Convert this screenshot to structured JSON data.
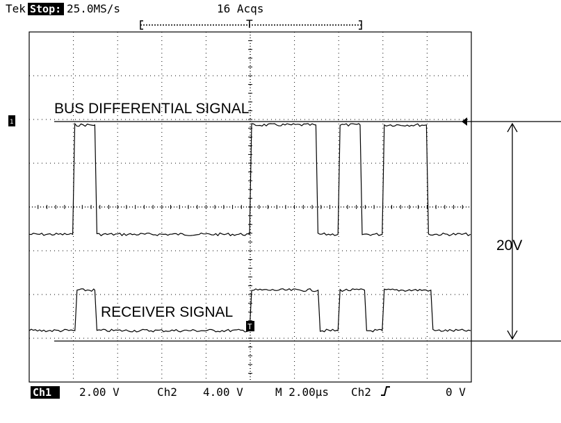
{
  "header": {
    "brand": "Tek",
    "state": "Stop:",
    "sample_rate": "25.0MS/s",
    "acquisitions": "16 Acqs"
  },
  "footer": {
    "ch1": "Ch1",
    "ch1_scale": "2.00 V",
    "ch2": "Ch2",
    "ch2_scale": "4.00 V",
    "timebase": "M 2.00µs",
    "trigger_source": "Ch2",
    "trigger_slope": "rising",
    "trigger_level": "0 V"
  },
  "markers": {
    "ch1_ground_marker": "1",
    "trigger_marker": "T"
  },
  "chart_data": {
    "type": "line",
    "title": "",
    "xlabel": "",
    "ylabel": "",
    "x_unit": "µs",
    "xlim": [
      -10,
      10
    ],
    "grid": true,
    "series": [
      {
        "name": "BUS DIFFERENTIAL SIGNAL",
        "low": -2.5,
        "high": 7.5,
        "transitions": [
          -8.0,
          -7.0,
          0.0,
          3.0,
          4.0,
          5.0,
          6.0,
          8.0
        ],
        "color": "#000000"
      },
      {
        "name": "RECEIVER SIGNAL",
        "low": -11.3,
        "high": -7.6,
        "transitions": [
          -7.9,
          -7.0,
          0.0,
          3.1,
          4.0,
          5.2,
          6.0,
          8.2
        ],
        "color": "#000000"
      }
    ],
    "annotation": {
      "label": "20V",
      "from": -12.5,
      "to": 7.5
    }
  }
}
